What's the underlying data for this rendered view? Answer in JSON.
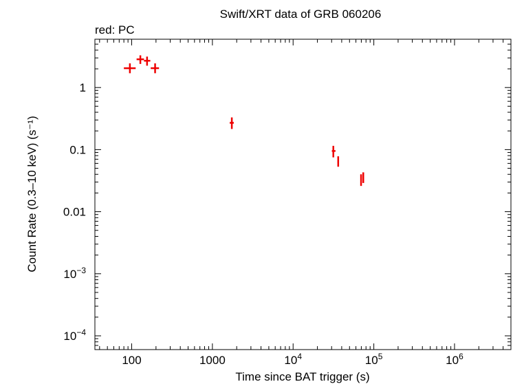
{
  "chart_data": {
    "type": "scatter",
    "title": "Swift/XRT data of GRB 060206",
    "subtitle": "red: PC",
    "xlabel": "Time since BAT trigger (s)",
    "ylabel": "Count Rate (0.3–10 keV) (s⁻¹)",
    "xscale": "log",
    "yscale": "log",
    "xlim": [
      35,
      5000000
    ],
    "ylim": [
      6e-05,
      6
    ],
    "grid": false,
    "xticks": [
      {
        "value": 100,
        "label": "100"
      },
      {
        "value": 1000,
        "label": "1000"
      },
      {
        "value": 10000,
        "base": "10",
        "exp": "4"
      },
      {
        "value": 100000,
        "base": "10",
        "exp": "5"
      },
      {
        "value": 1000000,
        "base": "10",
        "exp": "6"
      }
    ],
    "yticks": [
      {
        "value": 1,
        "label": "1"
      },
      {
        "value": 0.1,
        "label": "0.1"
      },
      {
        "value": 0.01,
        "label": "0.01"
      },
      {
        "value": 0.001,
        "base": "10",
        "exp": "−3"
      },
      {
        "value": 0.0001,
        "base": "10",
        "exp": "−4"
      }
    ],
    "series": [
      {
        "name": "PC",
        "color": "#ee0000",
        "points": [
          {
            "x": 95,
            "xerr": [
              80,
              112
            ],
            "y": 2.05,
            "yerr": [
              1.7,
              2.45
            ]
          },
          {
            "x": 128,
            "xerr": [
              115,
              142
            ],
            "y": 2.85,
            "yerr": [
              2.4,
              3.3
            ]
          },
          {
            "x": 155,
            "xerr": [
              142,
              170
            ],
            "y": 2.7,
            "yerr": [
              2.25,
              3.15
            ]
          },
          {
            "x": 195,
            "xerr": [
              172,
              218
            ],
            "y": 2.05,
            "yerr": [
              1.7,
              2.45
            ]
          },
          {
            "x": 1740,
            "xerr": [
              1640,
              1840
            ],
            "y": 0.27,
            "yerr": [
              0.215,
              0.33
            ]
          },
          {
            "x": 31500,
            "xerr": [
              30200,
              33500
            ],
            "y": 0.095,
            "yerr": [
              0.075,
              0.115
            ]
          },
          {
            "x": 36200,
            "xerr": [
              35500,
              37000
            ],
            "y": 0.063,
            "yerr": [
              0.053,
              0.078
            ]
          },
          {
            "x": 69500,
            "xerr": [
              68800,
              70200
            ],
            "y": 0.032,
            "yerr": [
              0.026,
              0.04
            ]
          },
          {
            "x": 74000,
            "xerr": [
              73300,
              74700
            ],
            "y": 0.035,
            "yerr": [
              0.029,
              0.043
            ]
          }
        ]
      }
    ]
  }
}
